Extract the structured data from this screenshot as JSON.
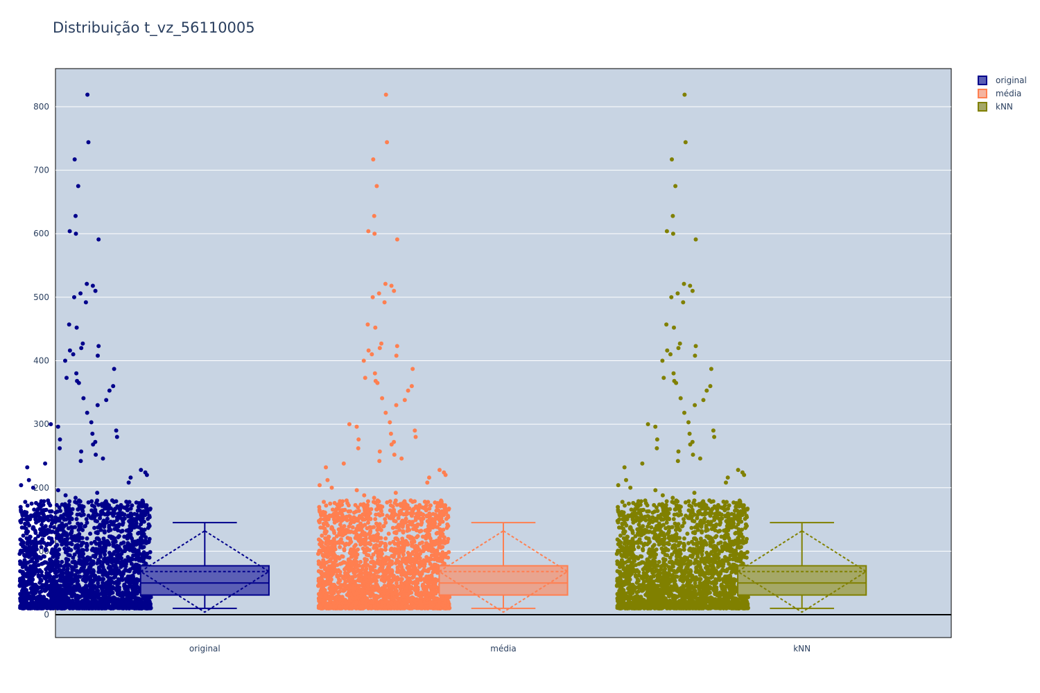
{
  "title": "Distribuição t_vz_56110005",
  "chart_data": {
    "type": "box",
    "title": "Distribuição t_vz_56110005",
    "xlabel": "",
    "ylabel": "",
    "categories": [
      "original",
      "média",
      "kNN"
    ],
    "ylim": [
      -36,
      860
    ],
    "yticks": [
      0,
      100,
      200,
      300,
      400,
      500,
      600,
      700,
      800
    ],
    "grid": true,
    "boxmean": "sd",
    "points": "all",
    "legend_position": "top-right",
    "series": [
      {
        "name": "original",
        "category": "original",
        "color": "#00008b",
        "fill": "#5b5fb5",
        "stats": {
          "min": 10,
          "q1": 31,
          "median": 50,
          "q3": 77,
          "upper_fence": 145,
          "mean": 68,
          "sd": 64
        },
        "outliers": [
          819,
          744,
          717,
          675,
          628,
          604,
          600,
          591,
          521,
          518,
          510,
          506,
          500,
          492,
          457,
          452,
          427,
          423,
          420,
          416,
          410,
          408,
          400,
          387,
          380,
          373,
          368,
          365,
          360,
          353,
          341,
          338,
          330,
          318,
          303,
          300,
          296,
          290,
          285,
          280,
          276,
          272,
          268,
          262,
          257,
          252,
          246,
          242,
          238,
          232,
          228,
          224,
          220,
          216,
          212,
          208,
          204,
          200,
          196,
          192,
          188,
          184,
          180,
          176,
          172,
          168,
          164,
          160,
          156,
          152,
          148
        ]
      },
      {
        "name": "média",
        "category": "média",
        "color": "#ff7f50",
        "fill": "#e9a48f",
        "stats": {
          "min": 10,
          "q1": 31,
          "median": 50,
          "q3": 77,
          "upper_fence": 145,
          "mean": 68,
          "sd": 64
        },
        "outliers": [
          819,
          744,
          717,
          675,
          628,
          604,
          600,
          591,
          521,
          518,
          510,
          506,
          500,
          492,
          457,
          452,
          427,
          423,
          420,
          416,
          410,
          408,
          400,
          387,
          380,
          373,
          368,
          365,
          360,
          353,
          341,
          338,
          330,
          318,
          303,
          300,
          296,
          290,
          285,
          280,
          276,
          272,
          268,
          262,
          257,
          252,
          246,
          242,
          238,
          232,
          228,
          224,
          220,
          216,
          212,
          208,
          204,
          200,
          196,
          192,
          188,
          184,
          180,
          176,
          172,
          168,
          164,
          160,
          156,
          152,
          148
        ]
      },
      {
        "name": "kNN",
        "category": "kNN",
        "color": "#808000",
        "fill": "#a5a867",
        "stats": {
          "min": 10,
          "q1": 31,
          "median": 50,
          "q3": 77,
          "upper_fence": 145,
          "mean": 68,
          "sd": 64
        },
        "outliers": [
          819,
          744,
          717,
          675,
          628,
          604,
          600,
          591,
          521,
          518,
          510,
          506,
          500,
          492,
          457,
          452,
          427,
          423,
          420,
          416,
          410,
          408,
          400,
          387,
          380,
          373,
          368,
          365,
          360,
          353,
          341,
          338,
          330,
          318,
          303,
          300,
          296,
          290,
          285,
          280,
          276,
          272,
          268,
          262,
          257,
          252,
          246,
          242,
          238,
          232,
          228,
          224,
          220,
          216,
          212,
          208,
          204,
          200,
          196,
          192,
          188,
          184,
          180,
          176,
          172,
          168,
          164,
          160,
          156,
          152,
          148
        ]
      }
    ]
  }
}
